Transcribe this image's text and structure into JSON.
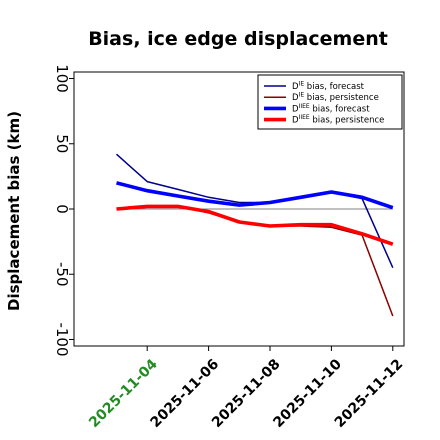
{
  "chart_data": {
    "type": "line",
    "title": "Bias, ice edge displacement",
    "xlabel": "",
    "ylabel": "Displacement bias (km)",
    "ylim": [
      -105,
      105
    ],
    "yticks": [
      -100,
      -50,
      0,
      50,
      100
    ],
    "xticks": [
      "2025-11-04",
      "2025-11-06",
      "2025-11-08",
      "2025-11-10",
      "2025-11-12"
    ],
    "highlight_tick_color": "#228b22",
    "x": [
      "2025-11-03",
      "2025-11-04",
      "2025-11-05",
      "2025-11-06",
      "2025-11-07",
      "2025-11-08",
      "2025-11-09",
      "2025-11-10",
      "2025-11-11",
      "2025-11-12"
    ],
    "zero_line": true,
    "legend_position": "top-right",
    "series": [
      {
        "name_prefix": "D",
        "name_sup": "IE",
        "name_suffix": " bias, forecast",
        "color": "#00008b",
        "width": "thin",
        "values": [
          42,
          21,
          15,
          9,
          5,
          5,
          9,
          13,
          8,
          -45
        ]
      },
      {
        "name_prefix": "D",
        "name_sup": "IE",
        "name_suffix": " bias, persistence",
        "color": "#8b0000",
        "width": "thin",
        "values": [
          0,
          2,
          2,
          -3,
          -10,
          -13,
          -13,
          -14,
          -20,
          -82
        ]
      },
      {
        "name_prefix": "D",
        "name_sup": "IIEE",
        "name_suffix": " bias, forecast",
        "color": "#0000ff",
        "width": "thick",
        "values": [
          20,
          14,
          10,
          6,
          3,
          5,
          9,
          13,
          9,
          1
        ]
      },
      {
        "name_prefix": "D",
        "name_sup": "IIEE",
        "name_suffix": " bias, persistence",
        "color": "#ff0000",
        "width": "thick",
        "values": [
          0,
          2,
          2,
          -2,
          -10,
          -13,
          -12,
          -12,
          -19,
          -27
        ]
      }
    ]
  }
}
